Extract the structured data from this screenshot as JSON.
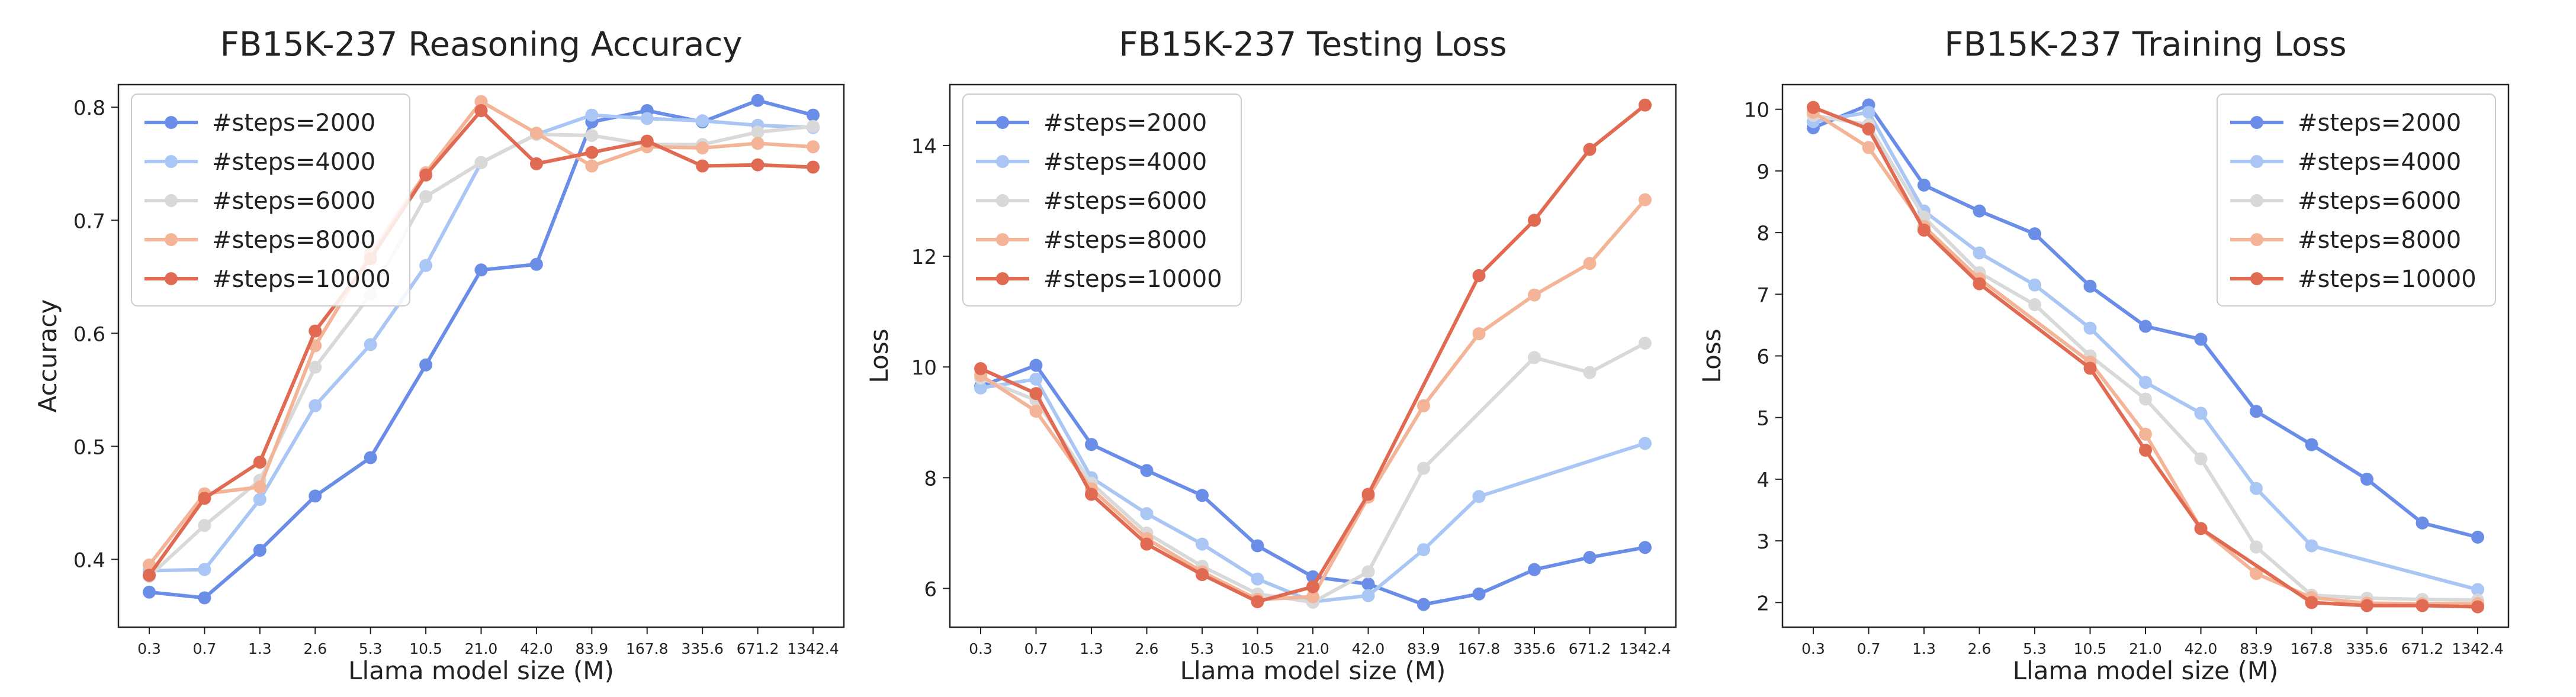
{
  "chart_data": [
    {
      "type": "line",
      "title": "FB15K-237 Reasoning Accuracy",
      "xlabel": "Llama model size (M)",
      "ylabel": "Accuracy",
      "categories": [
        "0.3",
        "0.7",
        "1.3",
        "2.6",
        "5.3",
        "10.5",
        "21.0",
        "42.0",
        "83.9",
        "167.8",
        "335.6",
        "671.2",
        "1342.4"
      ],
      "ylim": [
        0.34,
        0.82
      ],
      "yticks": [
        "0.4",
        "0.5",
        "0.6",
        "0.7",
        "0.8"
      ],
      "legend_position": "top-left",
      "series": [
        {
          "name": "#steps=2000",
          "color": "#6a8ee8",
          "values": [
            0.371,
            0.366,
            0.408,
            0.456,
            0.49,
            0.572,
            0.656,
            0.661,
            0.787,
            0.797,
            0.787,
            0.806,
            0.793
          ]
        },
        {
          "name": "#steps=4000",
          "color": "#a9c6f5",
          "values": [
            0.39,
            0.391,
            0.453,
            0.536,
            0.59,
            0.66,
            0.751,
            0.776,
            0.793,
            0.79,
            0.788,
            0.784,
            0.782
          ]
        },
        {
          "name": "#steps=6000",
          "color": "#d9d9d9",
          "values": [
            0.385,
            0.43,
            0.47,
            0.57,
            0.634,
            0.721,
            0.751,
            0.776,
            0.775,
            0.767,
            0.767,
            0.778,
            0.783
          ]
        },
        {
          "name": "#steps=8000",
          "color": "#f4b497",
          "values": [
            0.395,
            0.458,
            0.464,
            0.589,
            0.67,
            0.742,
            0.805,
            0.777,
            0.748,
            0.765,
            0.764,
            0.768,
            0.765
          ]
        },
        {
          "name": "#steps=10000",
          "color": "#e06a52",
          "values": [
            0.386,
            0.454,
            0.486,
            0.602,
            0.666,
            0.74,
            0.797,
            0.75,
            0.76,
            0.77,
            0.748,
            0.749,
            0.747
          ]
        }
      ]
    },
    {
      "type": "line",
      "title": "FB15K-237 Testing Loss",
      "xlabel": "Llama model size (M)",
      "ylabel": "Loss",
      "categories": [
        "0.3",
        "0.7",
        "1.3",
        "2.6",
        "5.3",
        "10.5",
        "21.0",
        "42.0",
        "83.9",
        "167.8",
        "335.6",
        "671.2",
        "1342.4"
      ],
      "ylim": [
        5.3,
        15.1
      ],
      "yticks": [
        "6",
        "8",
        "10",
        "12",
        "14"
      ],
      "legend_position": "top-left",
      "series": [
        {
          "name": "#steps=2000",
          "color": "#6a8ee8",
          "values": [
            9.65,
            10.03,
            8.6,
            8.13,
            7.68,
            6.77,
            6.21,
            6.08,
            5.71,
            5.9,
            6.34,
            6.56,
            6.74
          ]
        },
        {
          "name": "#steps=4000",
          "color": "#a9c6f5",
          "values": [
            9.62,
            9.78,
            8.0,
            7.35,
            6.8,
            6.17,
            5.76,
            5.87,
            6.7,
            7.66,
            null,
            null,
            8.62
          ]
        },
        {
          "name": "#steps=6000",
          "color": "#d9d9d9",
          "values": [
            9.8,
            9.4,
            7.9,
            7.0,
            6.4,
            5.9,
            5.75,
            6.3,
            8.17,
            null,
            10.17,
            9.9,
            10.43
          ]
        },
        {
          "name": "#steps=8000",
          "color": "#f4b497",
          "values": [
            9.85,
            9.2,
            7.8,
            6.9,
            6.3,
            5.8,
            5.85,
            7.65,
            9.3,
            10.6,
            11.3,
            11.87,
            13.02
          ]
        },
        {
          "name": "#steps=10000",
          "color": "#e06a52",
          "values": [
            9.97,
            9.52,
            7.7,
            6.8,
            6.25,
            5.76,
            6.03,
            7.7,
            null,
            11.65,
            12.65,
            13.93,
            14.73
          ]
        }
      ]
    },
    {
      "type": "line",
      "title": "FB15K-237 Training Loss",
      "xlabel": "Llama model size (M)",
      "ylabel": "Loss",
      "categories": [
        "0.3",
        "0.7",
        "1.3",
        "2.6",
        "5.3",
        "10.5",
        "21.0",
        "42.0",
        "83.9",
        "167.8",
        "335.6",
        "671.2",
        "1342.4"
      ],
      "ylim": [
        1.6,
        10.4
      ],
      "yticks": [
        "2",
        "3",
        "4",
        "5",
        "6",
        "7",
        "8",
        "9",
        "10"
      ],
      "legend_position": "top-right",
      "series": [
        {
          "name": "#steps=2000",
          "color": "#6a8ee8",
          "values": [
            9.7,
            10.07,
            8.77,
            8.35,
            7.98,
            7.13,
            6.48,
            6.27,
            5.1,
            4.56,
            4.0,
            3.29,
            3.06
          ]
        },
        {
          "name": "#steps=4000",
          "color": "#a9c6f5",
          "values": [
            9.8,
            9.95,
            8.35,
            7.67,
            7.15,
            6.45,
            5.57,
            5.07,
            3.85,
            2.92,
            null,
            null,
            2.21
          ]
        },
        {
          "name": "#steps=6000",
          "color": "#d9d9d9",
          "values": [
            9.9,
            9.75,
            8.25,
            7.35,
            6.83,
            6.0,
            5.3,
            4.33,
            2.9,
            2.12,
            2.07,
            2.05,
            2.04
          ]
        },
        {
          "name": "#steps=8000",
          "color": "#f4b497",
          "values": [
            9.95,
            9.38,
            8.1,
            7.25,
            null,
            5.9,
            4.73,
            3.2,
            2.47,
            2.08,
            1.99,
            1.98,
            1.98
          ]
        },
        {
          "name": "#steps=10000",
          "color": "#e06a52",
          "values": [
            10.03,
            9.68,
            8.04,
            7.17,
            null,
            5.8,
            4.47,
            3.2,
            null,
            2.0,
            1.95,
            1.95,
            1.93
          ]
        }
      ]
    }
  ]
}
